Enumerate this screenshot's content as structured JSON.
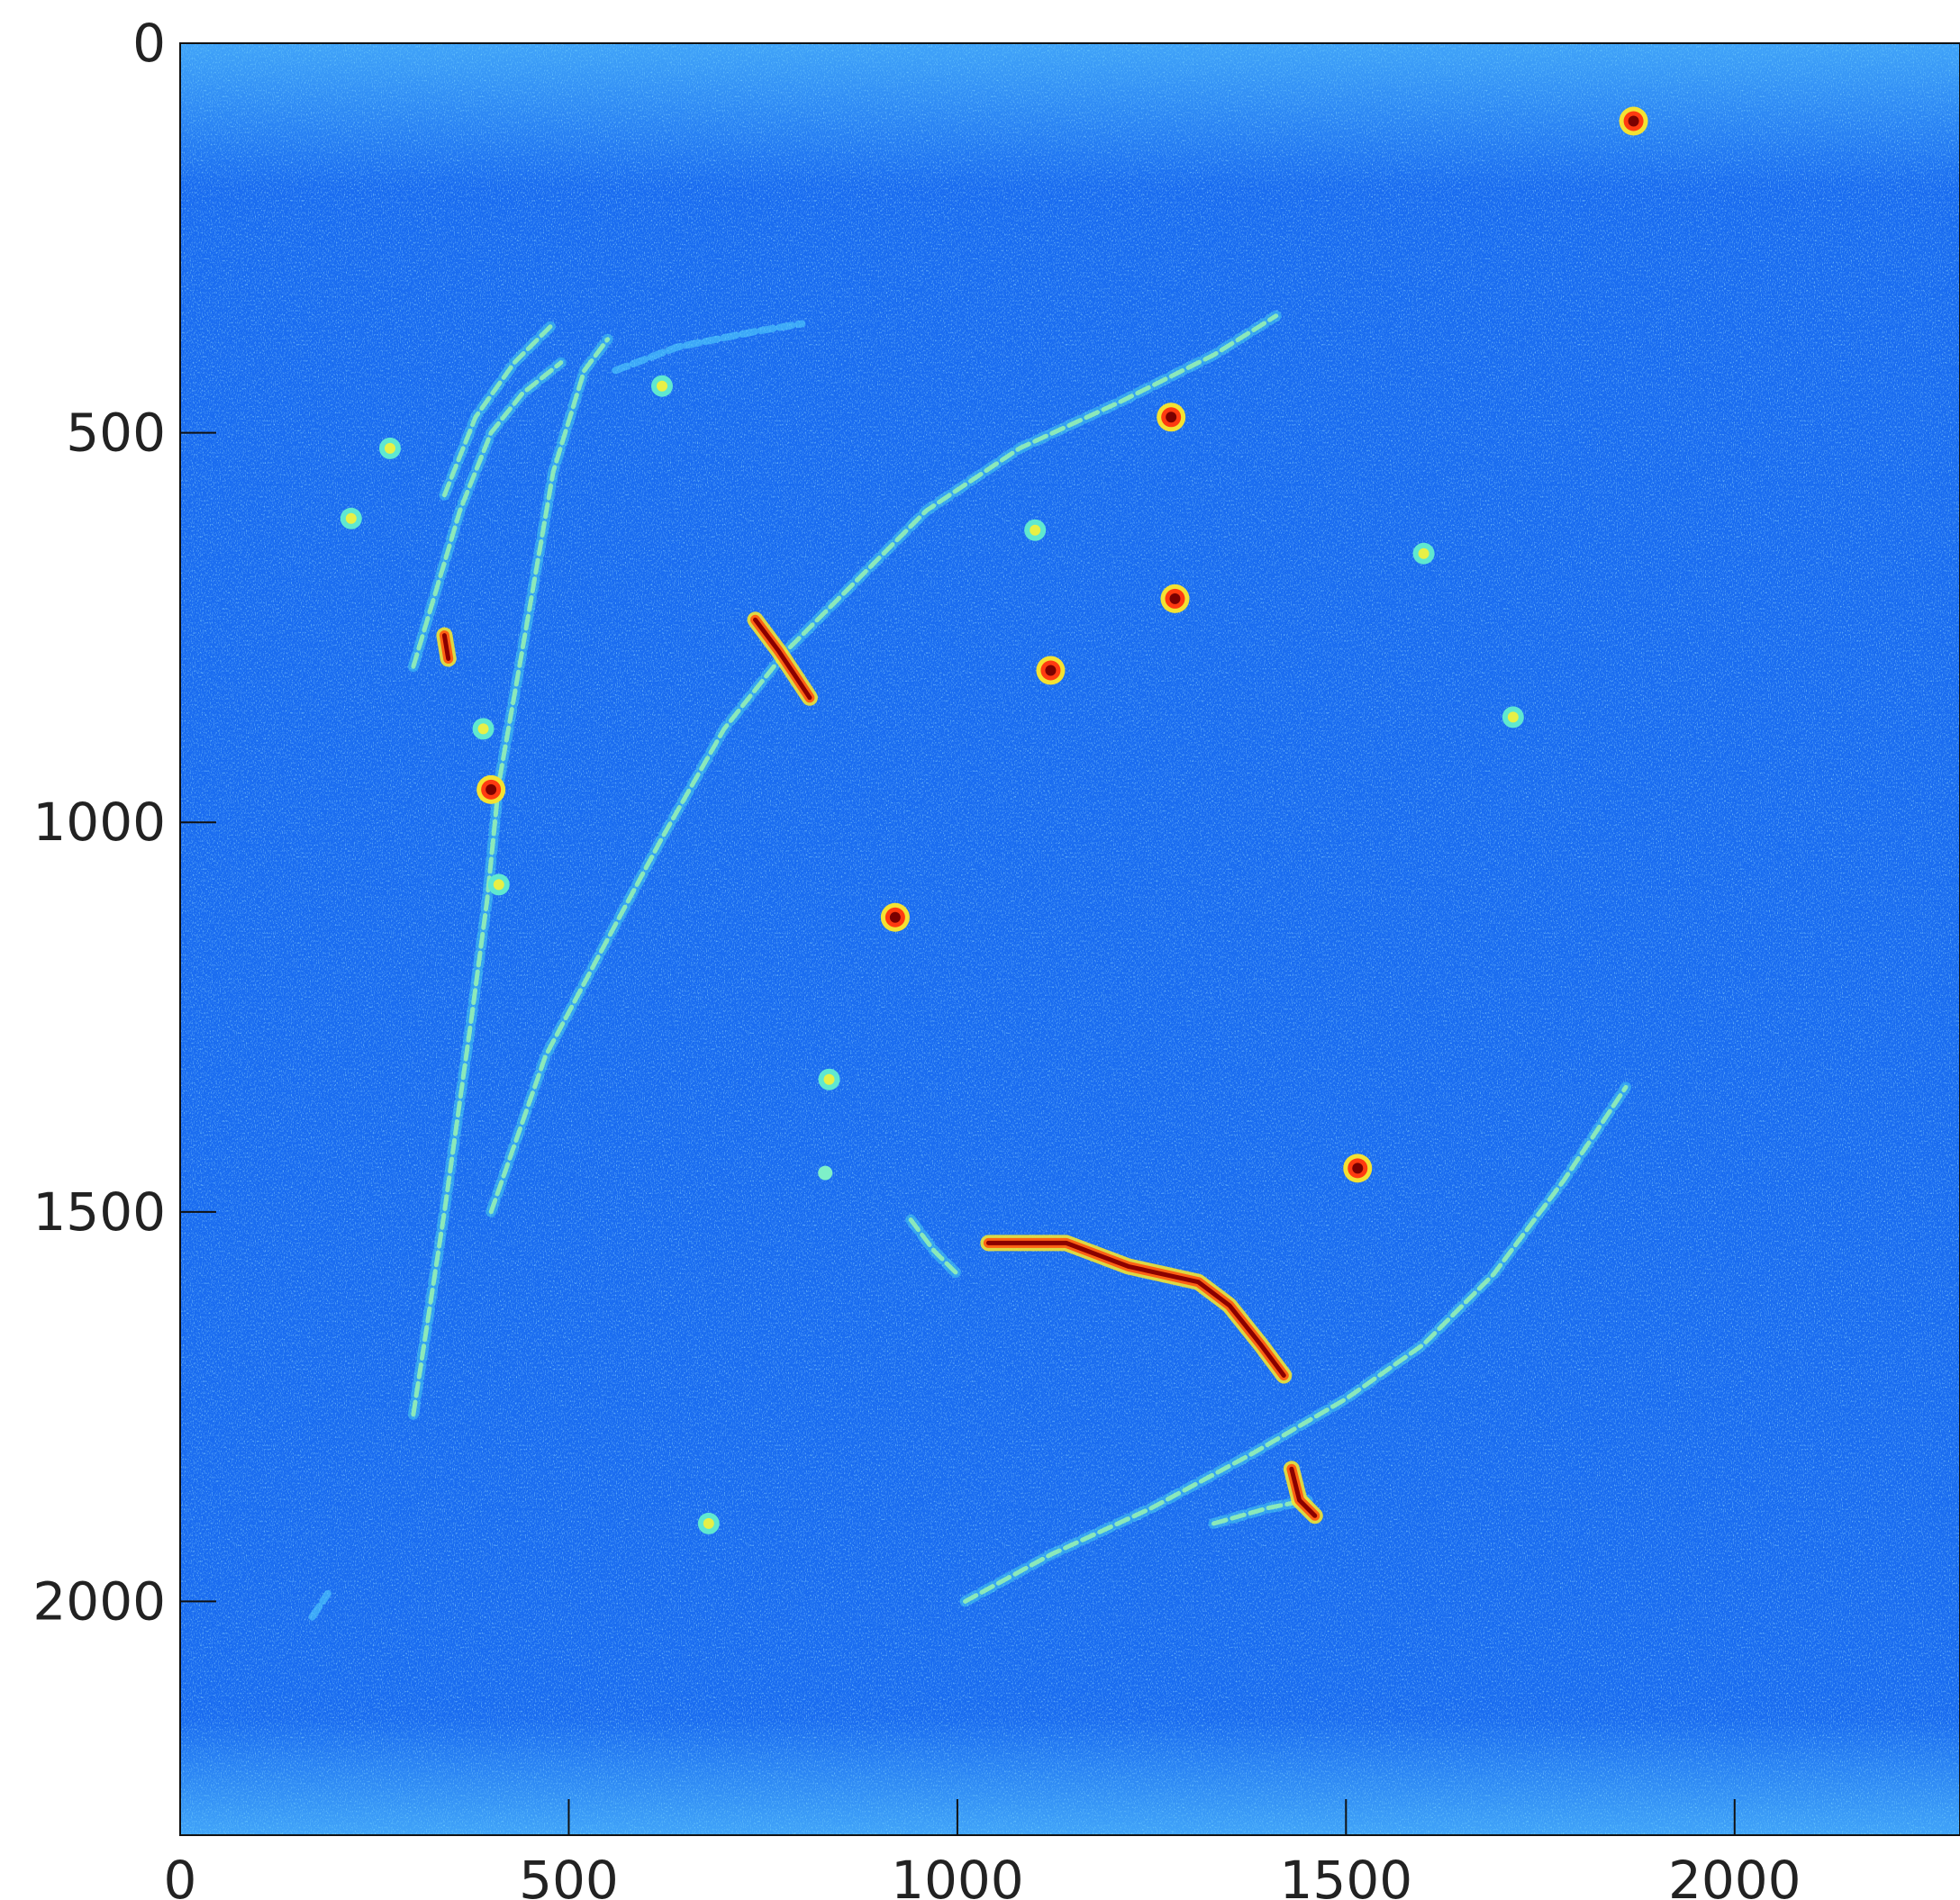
{
  "chart_data": {
    "type": "heatmap",
    "title": "",
    "xlabel": "",
    "ylabel": "",
    "colormap": "jet",
    "background_color": "#1a6cf0",
    "xlim": [
      0,
      2290
    ],
    "ylim": [
      2300,
      0
    ],
    "x_ticks": [
      0,
      500,
      1000,
      1500,
      2000
    ],
    "y_ticks": [
      0,
      500,
      1000,
      1500,
      2000
    ],
    "x_tick_labels": [
      "0",
      "500",
      "1000",
      "1500",
      "2000"
    ],
    "y_tick_labels": [
      "0",
      "500",
      "1000",
      "1500",
      "2000"
    ],
    "grid": false,
    "legend": "none",
    "tracks": [
      {
        "intensity": "medium",
        "points": [
          [
            300,
            1760
          ],
          [
            340,
            1500
          ],
          [
            375,
            1250
          ],
          [
            395,
            1100
          ],
          [
            410,
            950
          ],
          [
            440,
            780
          ],
          [
            480,
            550
          ],
          [
            520,
            420
          ],
          [
            550,
            380
          ]
        ]
      },
      {
        "intensity": "medium",
        "points": [
          [
            400,
            1500
          ],
          [
            470,
            1300
          ],
          [
            550,
            1150
          ],
          [
            620,
            1020
          ],
          [
            700,
            880
          ],
          [
            780,
            780
          ],
          [
            860,
            700
          ],
          [
            960,
            600
          ],
          [
            1080,
            520
          ],
          [
            1210,
            460
          ],
          [
            1330,
            400
          ],
          [
            1410,
            350
          ]
        ]
      },
      {
        "intensity": "medium",
        "points": [
          [
            1010,
            2000
          ],
          [
            1120,
            1940
          ],
          [
            1250,
            1880
          ],
          [
            1380,
            1810
          ],
          [
            1500,
            1740
          ],
          [
            1600,
            1670
          ],
          [
            1690,
            1580
          ],
          [
            1780,
            1460
          ],
          [
            1860,
            1340
          ]
        ]
      },
      {
        "intensity": "medium",
        "points": [
          [
            300,
            800
          ],
          [
            330,
            700
          ],
          [
            360,
            600
          ],
          [
            400,
            500
          ],
          [
            440,
            450
          ],
          [
            490,
            410
          ]
        ]
      },
      {
        "intensity": "medium",
        "points": [
          [
            340,
            580
          ],
          [
            380,
            480
          ],
          [
            430,
            410
          ],
          [
            480,
            360
          ]
        ]
      },
      {
        "intensity": "low",
        "points": [
          [
            560,
            420
          ],
          [
            640,
            390
          ],
          [
            740,
            370
          ],
          [
            800,
            360
          ]
        ]
      },
      {
        "intensity": "medium",
        "points": [
          [
            1330,
            1900
          ],
          [
            1400,
            1880
          ],
          [
            1450,
            1870
          ]
        ]
      },
      {
        "intensity": "medium",
        "points": [
          [
            940,
            1510
          ],
          [
            970,
            1550
          ],
          [
            1000,
            1580
          ]
        ]
      },
      {
        "intensity": "low",
        "points": [
          [
            170,
            2020
          ],
          [
            190,
            1990
          ]
        ]
      },
      {
        "intensity": "high",
        "points": [
          [
            740,
            740
          ],
          [
            770,
            780
          ],
          [
            790,
            810
          ],
          [
            810,
            840
          ]
        ]
      },
      {
        "intensity": "high",
        "points": [
          [
            1040,
            1540
          ],
          [
            1140,
            1540
          ],
          [
            1220,
            1570
          ],
          [
            1310,
            1590
          ],
          [
            1350,
            1620
          ],
          [
            1390,
            1670
          ],
          [
            1420,
            1710
          ]
        ]
      },
      {
        "intensity": "high",
        "points": [
          [
            1430,
            1830
          ],
          [
            1440,
            1870
          ],
          [
            1460,
            1890
          ]
        ]
      },
      {
        "intensity": "high",
        "points": [
          [
            340,
            760
          ],
          [
            345,
            790
          ]
        ]
      }
    ],
    "hot_spots": [
      {
        "x": 1275,
        "y": 480,
        "intensity": "high"
      },
      {
        "x": 1280,
        "y": 713,
        "intensity": "high"
      },
      {
        "x": 1120,
        "y": 805,
        "intensity": "high"
      },
      {
        "x": 920,
        "y": 1122,
        "intensity": "high"
      },
      {
        "x": 400,
        "y": 958,
        "intensity": "high"
      },
      {
        "x": 1515,
        "y": 1444,
        "intensity": "high"
      },
      {
        "x": 1715,
        "y": 865,
        "intensity": "medium"
      },
      {
        "x": 1600,
        "y": 655,
        "intensity": "medium"
      },
      {
        "x": 1100,
        "y": 625,
        "intensity": "medium"
      },
      {
        "x": 680,
        "y": 1900,
        "intensity": "medium"
      },
      {
        "x": 835,
        "y": 1330,
        "intensity": "medium"
      },
      {
        "x": 620,
        "y": 440,
        "intensity": "medium"
      },
      {
        "x": 270,
        "y": 520,
        "intensity": "medium"
      },
      {
        "x": 220,
        "y": 610,
        "intensity": "medium"
      },
      {
        "x": 390,
        "y": 880,
        "intensity": "medium"
      },
      {
        "x": 410,
        "y": 1080,
        "intensity": "medium"
      },
      {
        "x": 830,
        "y": 1450,
        "intensity": "low"
      },
      {
        "x": 1870,
        "y": 100,
        "intensity": "high"
      }
    ]
  }
}
